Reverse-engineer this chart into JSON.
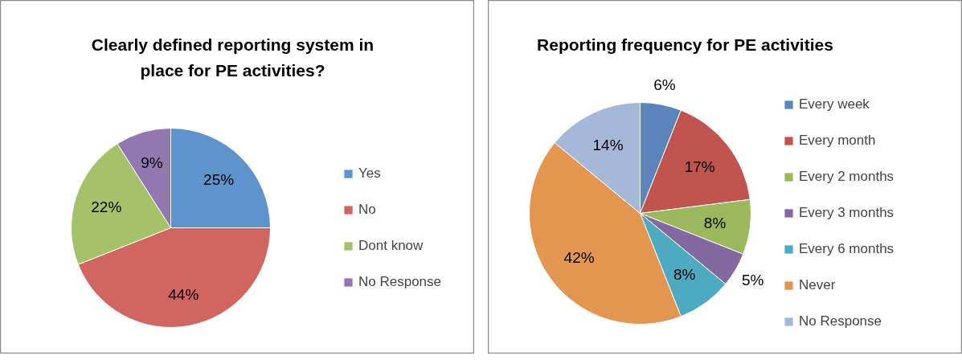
{
  "chart_data": [
    {
      "type": "pie",
      "title": "Clearly defined reporting system in place for PE activities?",
      "categories": [
        "Yes",
        "No",
        "Dont know",
        "No Response"
      ],
      "values": [
        25,
        44,
        22,
        9
      ],
      "value_labels": [
        "25%",
        "44%",
        "22%",
        "9%"
      ],
      "colors": [
        "#5f93cc",
        "#d0665f",
        "#a5c26b",
        "#9178b0"
      ],
      "legend": "right"
    },
    {
      "type": "pie",
      "title": "Reporting frequency for PE activities",
      "categories": [
        "Every week",
        "Every month",
        "Every 2 months",
        "Every 3 months",
        "Every 6 months",
        "Never",
        "No Response"
      ],
      "values": [
        6,
        17,
        8,
        5,
        8,
        42,
        14
      ],
      "value_labels": [
        "6%",
        "17%",
        "8%",
        "5%",
        "8%",
        "42%",
        "14%"
      ],
      "colors": [
        "#5a85bb",
        "#c0554f",
        "#9bb85d",
        "#8469a0",
        "#4eaac0",
        "#e3964f",
        "#a5b8d8"
      ],
      "legend": "right"
    }
  ]
}
